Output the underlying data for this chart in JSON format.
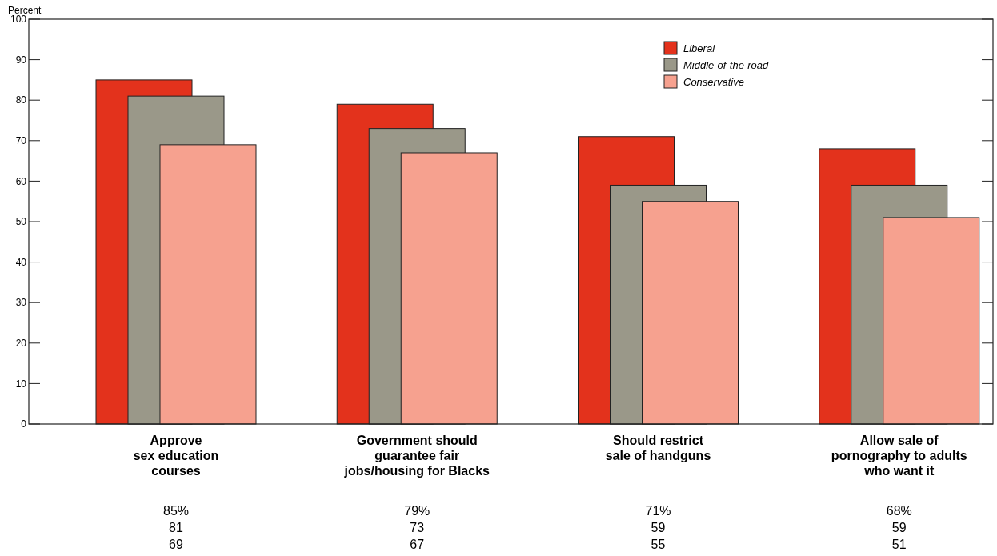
{
  "chart_data": {
    "type": "bar",
    "ylabel": "Percent",
    "categories": [
      "Approve\nsex education\ncourses",
      "Government should\nguarantee fair\njobs/housing for Blacks",
      "Should restrict\nsale of handguns",
      "Allow sale of\npornography to adults\nwho want it"
    ],
    "series": [
      {
        "name": "Liberal",
        "color": "#e3321c",
        "values": [
          85,
          79,
          71,
          68
        ],
        "value_labels": [
          "85%",
          "79%",
          "71%",
          "68%"
        ]
      },
      {
        "name": "Middle-of-the-road",
        "color": "#9a9889",
        "values": [
          81,
          73,
          59,
          59
        ],
        "value_labels": [
          "81",
          "73",
          "59",
          "59"
        ]
      },
      {
        "name": "Conservative",
        "color": "#f6a18f",
        "values": [
          69,
          67,
          55,
          51
        ],
        "value_labels": [
          "69",
          "67",
          "55",
          "51"
        ]
      }
    ],
    "ylim": [
      0,
      100
    ],
    "yticks": [
      0,
      10,
      20,
      30,
      40,
      50,
      60,
      70,
      80,
      90,
      100
    ],
    "grid": false,
    "legend": "top right"
  }
}
